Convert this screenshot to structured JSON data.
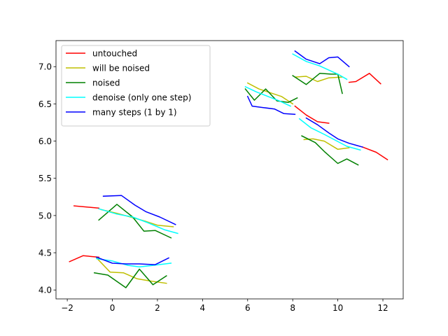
{
  "chart_data": {
    "type": "line",
    "title": "",
    "xlabel": "",
    "ylabel": "",
    "xlim": [
      -2.5,
      12.9
    ],
    "ylim": [
      3.88,
      7.35
    ],
    "xticks": [
      -2,
      0,
      2,
      4,
      6,
      8,
      10,
      12
    ],
    "yticks": [
      4.0,
      4.5,
      5.0,
      5.5,
      6.0,
      6.5,
      7.0
    ],
    "xtick_labels": [
      "−2",
      "0",
      "2",
      "4",
      "6",
      "8",
      "10",
      "12"
    ],
    "ytick_labels": [
      "4.0",
      "4.5",
      "5.0",
      "5.5",
      "6.0",
      "6.5",
      "7.0"
    ],
    "grid": false,
    "legend_position": "upper left",
    "series": [
      {
        "name": "untouched",
        "color": "#ff0000",
        "segments": [
          [
            [
              -1.9,
              4.38
            ],
            [
              -1.3,
              4.46
            ],
            [
              -0.6,
              4.44
            ]
          ],
          [
            [
              -1.7,
              5.13
            ],
            [
              -0.6,
              5.1
            ]
          ],
          [
            [
              8.1,
              6.47
            ],
            [
              8.6,
              6.35
            ],
            [
              9.1,
              6.26
            ],
            [
              9.6,
              6.24
            ]
          ],
          [
            [
              10.5,
              6.79
            ],
            [
              10.8,
              6.8
            ],
            [
              11.4,
              6.91
            ],
            [
              11.9,
              6.77
            ]
          ],
          [
            [
              11.1,
              5.92
            ],
            [
              11.7,
              5.85
            ],
            [
              12.2,
              5.75
            ]
          ]
        ]
      },
      {
        "name": "will be noised",
        "color": "#bfbf00",
        "segments": [
          [
            [
              -0.7,
              4.43
            ],
            [
              -0.1,
              4.24
            ],
            [
              0.5,
              4.23
            ],
            [
              1.1,
              4.15
            ],
            [
              1.7,
              4.12
            ],
            [
              2.4,
              4.09
            ]
          ],
          [
            [
              -0.5,
              5.08
            ],
            [
              0.2,
              5.03
            ],
            [
              0.8,
              4.98
            ],
            [
              1.5,
              4.92
            ],
            [
              2.0,
              4.87
            ],
            [
              2.7,
              4.85
            ]
          ],
          [
            [
              6.0,
              6.78
            ],
            [
              6.5,
              6.7
            ],
            [
              7.0,
              6.65
            ],
            [
              7.5,
              6.6
            ],
            [
              8.0,
              6.5
            ]
          ],
          [
            [
              8.5,
              6.02
            ],
            [
              8.9,
              6.03
            ],
            [
              9.4,
              6.0
            ],
            [
              10.0,
              5.89
            ],
            [
              10.5,
              5.91
            ]
          ],
          [
            [
              8.1,
              6.86
            ],
            [
              8.6,
              6.87
            ],
            [
              9.1,
              6.8
            ],
            [
              9.6,
              6.85
            ],
            [
              10.2,
              6.86
            ]
          ]
        ]
      },
      {
        "name": "noised",
        "color": "#008000",
        "segments": [
          [
            [
              -0.8,
              4.23
            ],
            [
              -0.2,
              4.2
            ],
            [
              0.6,
              4.03
            ],
            [
              1.2,
              4.28
            ],
            [
              1.8,
              4.07
            ],
            [
              2.4,
              4.19
            ]
          ],
          [
            [
              -0.6,
              4.94
            ],
            [
              0.2,
              5.15
            ],
            [
              0.9,
              4.98
            ],
            [
              1.4,
              4.79
            ],
            [
              1.9,
              4.8
            ],
            [
              2.6,
              4.7
            ]
          ],
          [
            [
              5.9,
              6.7
            ],
            [
              6.3,
              6.55
            ],
            [
              6.8,
              6.7
            ],
            [
              7.3,
              6.54
            ],
            [
              7.8,
              6.52
            ],
            [
              8.2,
              6.58
            ]
          ],
          [
            [
              8.4,
              6.07
            ],
            [
              9.0,
              5.98
            ],
            [
              9.4,
              5.86
            ],
            [
              10.0,
              5.7
            ],
            [
              10.4,
              5.76
            ],
            [
              10.9,
              5.68
            ]
          ],
          [
            [
              8.0,
              6.88
            ],
            [
              8.6,
              6.76
            ],
            [
              9.2,
              6.91
            ],
            [
              9.7,
              6.9
            ],
            [
              10.0,
              6.9
            ],
            [
              10.2,
              6.64
            ]
          ]
        ]
      },
      {
        "name": "denoise (only one step)",
        "color": "#00ffff",
        "segments": [
          [
            [
              -0.7,
              4.42
            ],
            [
              0.0,
              4.39
            ],
            [
              0.7,
              4.33
            ],
            [
              1.2,
              4.31
            ],
            [
              1.8,
              4.33
            ],
            [
              2.6,
              4.36
            ]
          ],
          [
            [
              -0.6,
              5.09
            ],
            [
              0.2,
              5.02
            ],
            [
              0.9,
              4.98
            ],
            [
              1.6,
              4.9
            ],
            [
              2.3,
              4.81
            ],
            [
              2.9,
              4.76
            ]
          ],
          [
            [
              5.9,
              6.73
            ],
            [
              6.4,
              6.66
            ],
            [
              6.9,
              6.6
            ],
            [
              7.4,
              6.54
            ],
            [
              7.9,
              6.47
            ]
          ],
          [
            [
              8.3,
              6.3
            ],
            [
              8.8,
              6.18
            ],
            [
              9.4,
              6.09
            ],
            [
              9.9,
              6.01
            ],
            [
              10.4,
              5.93
            ],
            [
              11.0,
              5.88
            ]
          ],
          [
            [
              8.0,
              7.17
            ],
            [
              8.6,
              7.07
            ],
            [
              9.2,
              7.01
            ],
            [
              9.7,
              6.94
            ],
            [
              10.0,
              6.9
            ],
            [
              10.4,
              6.83
            ]
          ]
        ]
      },
      {
        "name": "many steps (1 by 1)",
        "color": "#0000ff",
        "segments": [
          [
            [
              -0.7,
              4.44
            ],
            [
              0.0,
              4.36
            ],
            [
              0.6,
              4.35
            ],
            [
              1.2,
              4.35
            ],
            [
              1.9,
              4.34
            ],
            [
              2.5,
              4.43
            ]
          ],
          [
            [
              -0.4,
              5.26
            ],
            [
              0.4,
              5.27
            ],
            [
              1.0,
              5.14
            ],
            [
              1.5,
              5.05
            ],
            [
              2.1,
              4.98
            ],
            [
              2.8,
              4.88
            ]
          ],
          [
            [
              6.0,
              6.6
            ],
            [
              6.2,
              6.47
            ],
            [
              6.7,
              6.45
            ],
            [
              7.2,
              6.43
            ],
            [
              7.6,
              6.37
            ],
            [
              8.1,
              6.36
            ]
          ],
          [
            [
              8.6,
              6.31
            ],
            [
              9.1,
              6.22
            ],
            [
              9.6,
              6.11
            ],
            [
              10.0,
              6.03
            ],
            [
              10.5,
              5.97
            ],
            [
              11.1,
              5.92
            ]
          ],
          [
            [
              8.1,
              7.21
            ],
            [
              8.6,
              7.1
            ],
            [
              9.2,
              7.04
            ],
            [
              9.6,
              7.12
            ],
            [
              10.0,
              7.13
            ],
            [
              10.5,
              7.0
            ]
          ]
        ]
      }
    ]
  }
}
